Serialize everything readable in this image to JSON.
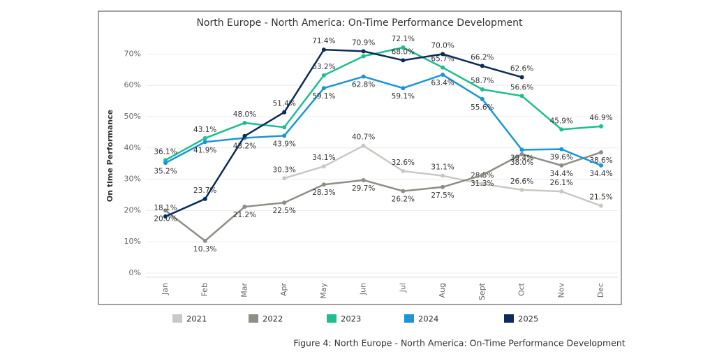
{
  "chart_data": {
    "type": "line",
    "title": "North Europe - North America: On-Time Performance Development",
    "y_label": "On time Performance",
    "caption": "Figure 4: North Europe - North America: On-Time Performance Development",
    "categories": [
      "Jan",
      "Feb",
      "Mar",
      "Apr",
      "May",
      "Jun",
      "Jul",
      "Aug",
      "Sept",
      "Oct",
      "Nov",
      "Dec"
    ],
    "ylim": [
      0,
      75
    ],
    "yticks": [
      {
        "value": 0,
        "label": "0%"
      },
      {
        "value": 10,
        "label": "10%"
      },
      {
        "value": 20,
        "label": "20%"
      },
      {
        "value": 30,
        "label": "30%"
      },
      {
        "value": 40,
        "label": "40%"
      },
      {
        "value": 50,
        "label": "50%"
      },
      {
        "value": 60,
        "label": "60%"
      },
      {
        "value": 70,
        "label": "70%"
      }
    ],
    "grid": true,
    "legend": "bottom",
    "series": [
      {
        "name": "2021",
        "color": "#c9c9c4",
        "label_side": "above",
        "values": [
          null,
          null,
          null,
          30.3,
          34.1,
          40.7,
          32.6,
          31.1,
          28.5,
          26.6,
          26.1,
          21.5
        ],
        "value_labels": [
          null,
          null,
          null,
          "30.3%",
          "34.1%",
          "40.7%",
          "32.6%",
          "31.1%",
          "28.5%",
          "26.6%",
          "26.1%",
          "21.5%"
        ]
      },
      {
        "name": "2022",
        "color": "#8e8e87",
        "label_side": "below",
        "values": [
          20.0,
          10.3,
          21.2,
          22.5,
          28.3,
          29.7,
          26.2,
          27.5,
          31.3,
          38.0,
          34.4,
          38.6
        ],
        "value_labels": [
          "20.0%",
          "10.3%",
          "21.2%",
          "22.5%",
          "28.3%",
          "29.7%",
          "26.2%",
          "27.5%",
          "31.3%",
          "38.0%",
          "34.4%",
          "38.6%"
        ]
      },
      {
        "name": "2023",
        "color": "#1dbf8e",
        "label_side": "above",
        "values": [
          36.1,
          43.1,
          48.0,
          46.6,
          63.2,
          69.3,
          72.1,
          65.7,
          58.7,
          56.6,
          45.9,
          46.9
        ],
        "value_labels": [
          "36.1%",
          "43.1%",
          "48.0%",
          null,
          "63.2%",
          null,
          "72.1%",
          "65.7%",
          "58.7%",
          "56.6%",
          "45.9%",
          "46.9%"
        ]
      },
      {
        "name": "2024",
        "color": "#1b95d5",
        "label_side": "below",
        "values": [
          35.2,
          41.9,
          43.2,
          43.9,
          59.1,
          62.8,
          59.1,
          63.4,
          55.6,
          39.4,
          39.6,
          34.4
        ],
        "value_labels": [
          "35.2%",
          "41.9%",
          "43.2%",
          "43.9%",
          "59.1%",
          "62.8%",
          "59.1%",
          "63.4%",
          "55.6%",
          "39.4%",
          "39.6%",
          "34.4%"
        ]
      },
      {
        "name": "2025",
        "color": "#0c2b59",
        "label_side": "above",
        "values": [
          18.1,
          23.7,
          43.8,
          51.4,
          71.4,
          70.9,
          68.0,
          70.0,
          66.2,
          62.6,
          null,
          null
        ],
        "value_labels": [
          "18.1%",
          "23.7%",
          null,
          "51.4%",
          "71.4%",
          "70.9%",
          "68.0%",
          "70.0%",
          "66.2%",
          "62.6%",
          null,
          null
        ]
      }
    ]
  }
}
